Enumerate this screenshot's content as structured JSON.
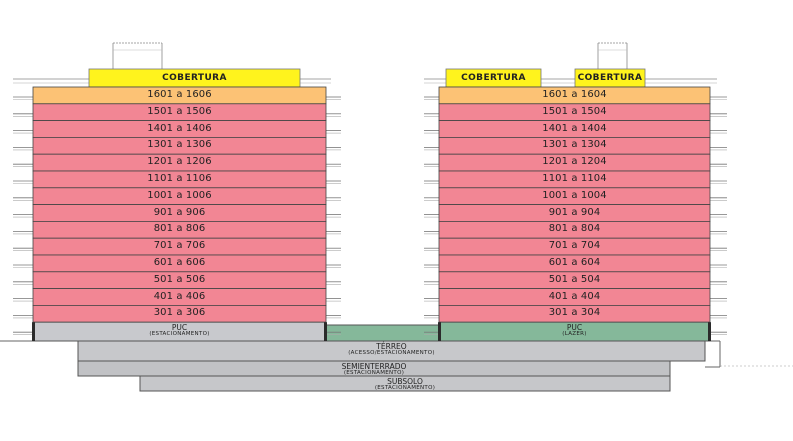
{
  "colors": {
    "cobertura": "#fff31d",
    "top_floor": "#fcc275",
    "floor": "#f28694",
    "puc_parking": "#c8c9cd",
    "puc_leisure": "#85b89a",
    "terreo": "#c7c8cb",
    "semienterrado": "#c1c2c5",
    "subsolo": "#c6c7ca",
    "outline": "#555555",
    "dark_pillar": "#2b2b2b"
  },
  "left_tower": {
    "coberturas": [
      {
        "label": "COBERTURA"
      }
    ],
    "floors": [
      {
        "label": "1601 a 1606"
      },
      {
        "label": "1501 a 1506"
      },
      {
        "label": "1401 a 1406"
      },
      {
        "label": "1301 a 1306"
      },
      {
        "label": "1201 a 1206"
      },
      {
        "label": "1101 a 1106"
      },
      {
        "label": "1001 a 1006"
      },
      {
        "label": "901 a 906"
      },
      {
        "label": "801 a 806"
      },
      {
        "label": "701 a 706"
      },
      {
        "label": "601 a 606"
      },
      {
        "label": "501 a 506"
      },
      {
        "label": "401 a 406"
      },
      {
        "label": "301 a 306"
      }
    ],
    "puc": {
      "title": "PUC",
      "subtitle": "(ESTACIONAMENTO)"
    }
  },
  "right_tower": {
    "coberturas": [
      {
        "label": "COBERTURA"
      },
      {
        "label": "COBERTURA"
      }
    ],
    "floors": [
      {
        "label": "1601 a 1604"
      },
      {
        "label": "1501 a 1504"
      },
      {
        "label": "1401 a 1404"
      },
      {
        "label": "1301 a 1304"
      },
      {
        "label": "1201 a 1204"
      },
      {
        "label": "1101 a 1104"
      },
      {
        "label": "1001 a 1004"
      },
      {
        "label": "901 a 904"
      },
      {
        "label": "801 a 804"
      },
      {
        "label": "701 a 704"
      },
      {
        "label": "601 a 604"
      },
      {
        "label": "501 a 504"
      },
      {
        "label": "401 a 404"
      },
      {
        "label": "301 a 304"
      }
    ],
    "puc": {
      "title": "PUC",
      "subtitle": "(LAZER)"
    }
  },
  "base_levels": [
    {
      "title": "TÉRREO",
      "subtitle": "(ACESSO/ESTACIONAMENTO)"
    },
    {
      "title": "SEMIENTERRADO",
      "subtitle": "(ESTACIONAMENTO)"
    },
    {
      "title": "SUBSOLO",
      "subtitle": "(ESTACIONAMENTO)"
    }
  ]
}
